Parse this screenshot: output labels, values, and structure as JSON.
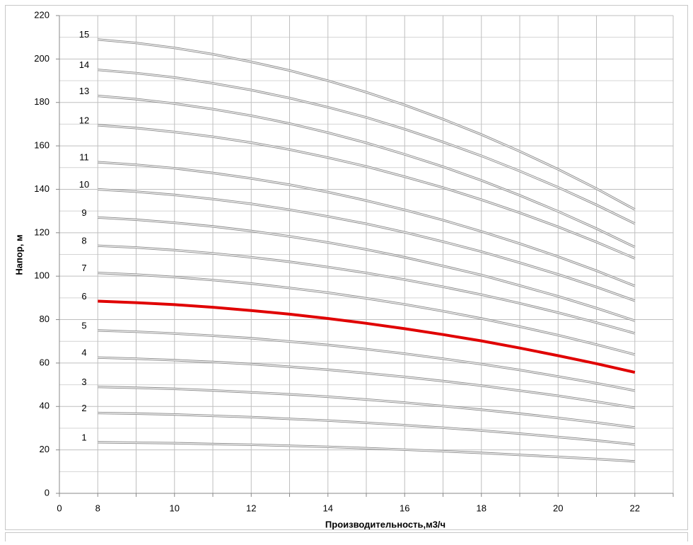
{
  "chart_data": {
    "type": "line",
    "x_label": "Производительность,м3/ч",
    "y_label": "Напор, м",
    "categories": [
      "0",
      "8",
      null,
      "10",
      null,
      "12",
      null,
      "14",
      null,
      "16",
      null,
      "18",
      null,
      "20",
      null,
      "22",
      null
    ],
    "ylim": [
      0,
      220
    ],
    "yticks": [
      0,
      20,
      40,
      60,
      80,
      100,
      120,
      140,
      160,
      180,
      200,
      220
    ],
    "grid": true,
    "series": [
      {
        "name": "1",
        "color": "#a6a6a6",
        "values": [
          null,
          23.5,
          23.3,
          23.1,
          22.7,
          22.4,
          21.9,
          21.4,
          20.8,
          20.1,
          19.4,
          18.6,
          17.7,
          16.8,
          15.8,
          14.7,
          null
        ]
      },
      {
        "name": "2",
        "color": "#a6a6a6",
        "values": [
          null,
          37,
          36.7,
          36.3,
          35.7,
          35.1,
          34.3,
          33.5,
          32.5,
          31.4,
          30.2,
          28.9,
          27.5,
          25.9,
          24.3,
          22.5,
          null
        ]
      },
      {
        "name": "3",
        "color": "#a6a6a6",
        "values": [
          null,
          49,
          48.6,
          48.1,
          47.4,
          46.5,
          45.6,
          44.5,
          43.2,
          41.8,
          40.2,
          38.5,
          36.7,
          34.7,
          32.6,
          30.3,
          null
        ]
      },
      {
        "name": "4",
        "color": "#a6a6a6",
        "values": [
          null,
          62.5,
          62.0,
          61.3,
          60.5,
          59.5,
          58.3,
          56.9,
          55.3,
          53.6,
          51.7,
          49.6,
          47.3,
          44.9,
          42.2,
          39.4,
          null
        ]
      },
      {
        "name": "5",
        "color": "#a6a6a6",
        "values": [
          null,
          75,
          74.4,
          73.6,
          72.6,
          71.4,
          69.9,
          68.3,
          66.4,
          64.3,
          62.0,
          59.5,
          56.8,
          53.8,
          50.7,
          47.3,
          null
        ]
      },
      {
        "name": "6",
        "color": "#e00000",
        "values": [
          null,
          88.5,
          87.8,
          86.9,
          85.7,
          84.2,
          82.5,
          80.5,
          78.3,
          75.8,
          73.1,
          70.2,
          66.9,
          63.4,
          59.7,
          55.7,
          null
        ]
      },
      {
        "name": "7",
        "color": "#a6a6a6",
        "values": [
          null,
          101.5,
          100.7,
          99.6,
          98.2,
          96.6,
          94.6,
          92.4,
          89.8,
          87.0,
          83.9,
          80.5,
          76.8,
          72.8,
          68.5,
          63.9,
          null
        ]
      },
      {
        "name": "8",
        "color": "#a6a6a6",
        "values": [
          null,
          114,
          113.2,
          112.0,
          110.5,
          108.7,
          106.6,
          104.2,
          101.5,
          98.4,
          95.1,
          91.5,
          87.5,
          83.2,
          78.6,
          73.7,
          null
        ]
      },
      {
        "name": "9",
        "color": "#a6a6a6",
        "values": [
          null,
          127,
          126.0,
          124.6,
          122.9,
          120.8,
          118.3,
          115.5,
          112.3,
          108.7,
          104.7,
          100.5,
          95.7,
          90.7,
          85.3,
          79.5,
          null
        ]
      },
      {
        "name": "10",
        "color": "#a6a6a6",
        "values": [
          null,
          140,
          138.9,
          137.4,
          135.5,
          133.3,
          130.6,
          127.5,
          124.1,
          120.2,
          115.9,
          111.3,
          106.2,
          100.8,
          95.0,
          88.7,
          null
        ]
      },
      {
        "name": "11",
        "color": "#a6a6a6",
        "values": [
          null,
          152.5,
          151.3,
          149.7,
          147.5,
          145.0,
          142.1,
          138.7,
          134.8,
          130.5,
          125.8,
          120.6,
          115.0,
          109.0,
          102.5,
          95.5,
          null
        ]
      },
      {
        "name": "12",
        "color": "#a6a6a6",
        "values": [
          null,
          169.5,
          168.2,
          166.4,
          164.2,
          161.5,
          158.3,
          154.6,
          150.5,
          145.8,
          140.8,
          135.2,
          129.2,
          122.7,
          115.7,
          108.2,
          null
        ]
      },
      {
        "name": "13",
        "color": "#a6a6a6",
        "values": [
          null,
          183,
          181.5,
          179.5,
          176.9,
          173.9,
          170.3,
          166.1,
          161.4,
          156.1,
          150.4,
          144.1,
          137.2,
          129.8,
          121.9,
          113.4,
          null
        ]
      },
      {
        "name": "14",
        "color": "#a6a6a6",
        "values": [
          null,
          195,
          193.5,
          191.5,
          188.8,
          185.7,
          182.0,
          177.8,
          173.1,
          167.7,
          161.8,
          155.4,
          148.4,
          140.9,
          132.8,
          124.2,
          null
        ]
      },
      {
        "name": "15",
        "color": "#a6a6a6",
        "values": [
          null,
          209,
          207.4,
          205.1,
          202.2,
          198.7,
          194.7,
          190.0,
          184.7,
          178.8,
          172.3,
          165.2,
          157.5,
          149.2,
          140.3,
          130.7,
          null
        ]
      }
    ]
  }
}
